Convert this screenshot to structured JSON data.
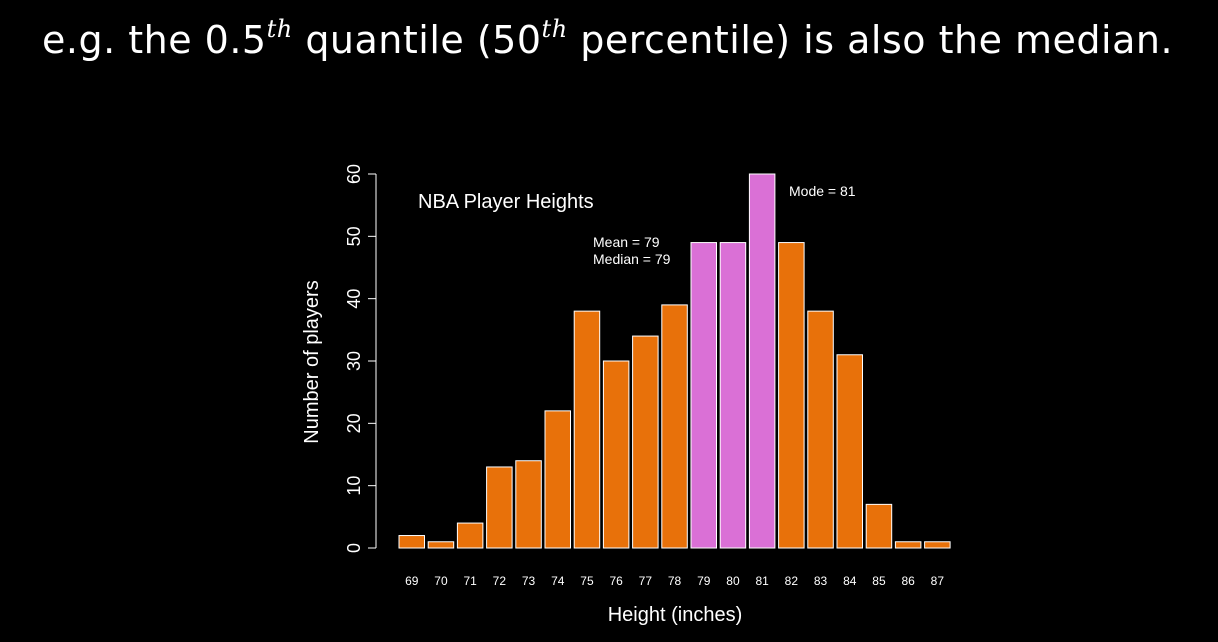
{
  "headline": {
    "part1": "e.g. the 0.5",
    "sup1": "th",
    "part2": " quantile (50",
    "sup2": "th",
    "part3": " percentile) is also the median."
  },
  "chart_data": {
    "type": "bar",
    "title": "NBA Player Heights",
    "xlabel": "Height (inches)",
    "ylabel": "Number of players",
    "categories": [
      "69",
      "70",
      "71",
      "72",
      "73",
      "74",
      "75",
      "76",
      "77",
      "78",
      "79",
      "80",
      "81",
      "82",
      "83",
      "84",
      "85",
      "86",
      "87"
    ],
    "values": [
      2,
      1,
      4,
      13,
      14,
      22,
      38,
      30,
      34,
      39,
      49,
      49,
      60,
      49,
      38,
      31,
      7,
      1,
      1
    ],
    "highlighted": [
      "79",
      "80",
      "81"
    ],
    "ylim": [
      0,
      60
    ],
    "yticks": [
      0,
      10,
      20,
      30,
      40,
      50,
      60
    ],
    "annotations": {
      "mean": "Mean = 79",
      "median": "Median = 79",
      "mode": "Mode = 81"
    },
    "colors": {
      "bar": "#e8710a",
      "highlight": "#da70d6",
      "bar_outline": "#ffffff"
    },
    "grid": false
  }
}
